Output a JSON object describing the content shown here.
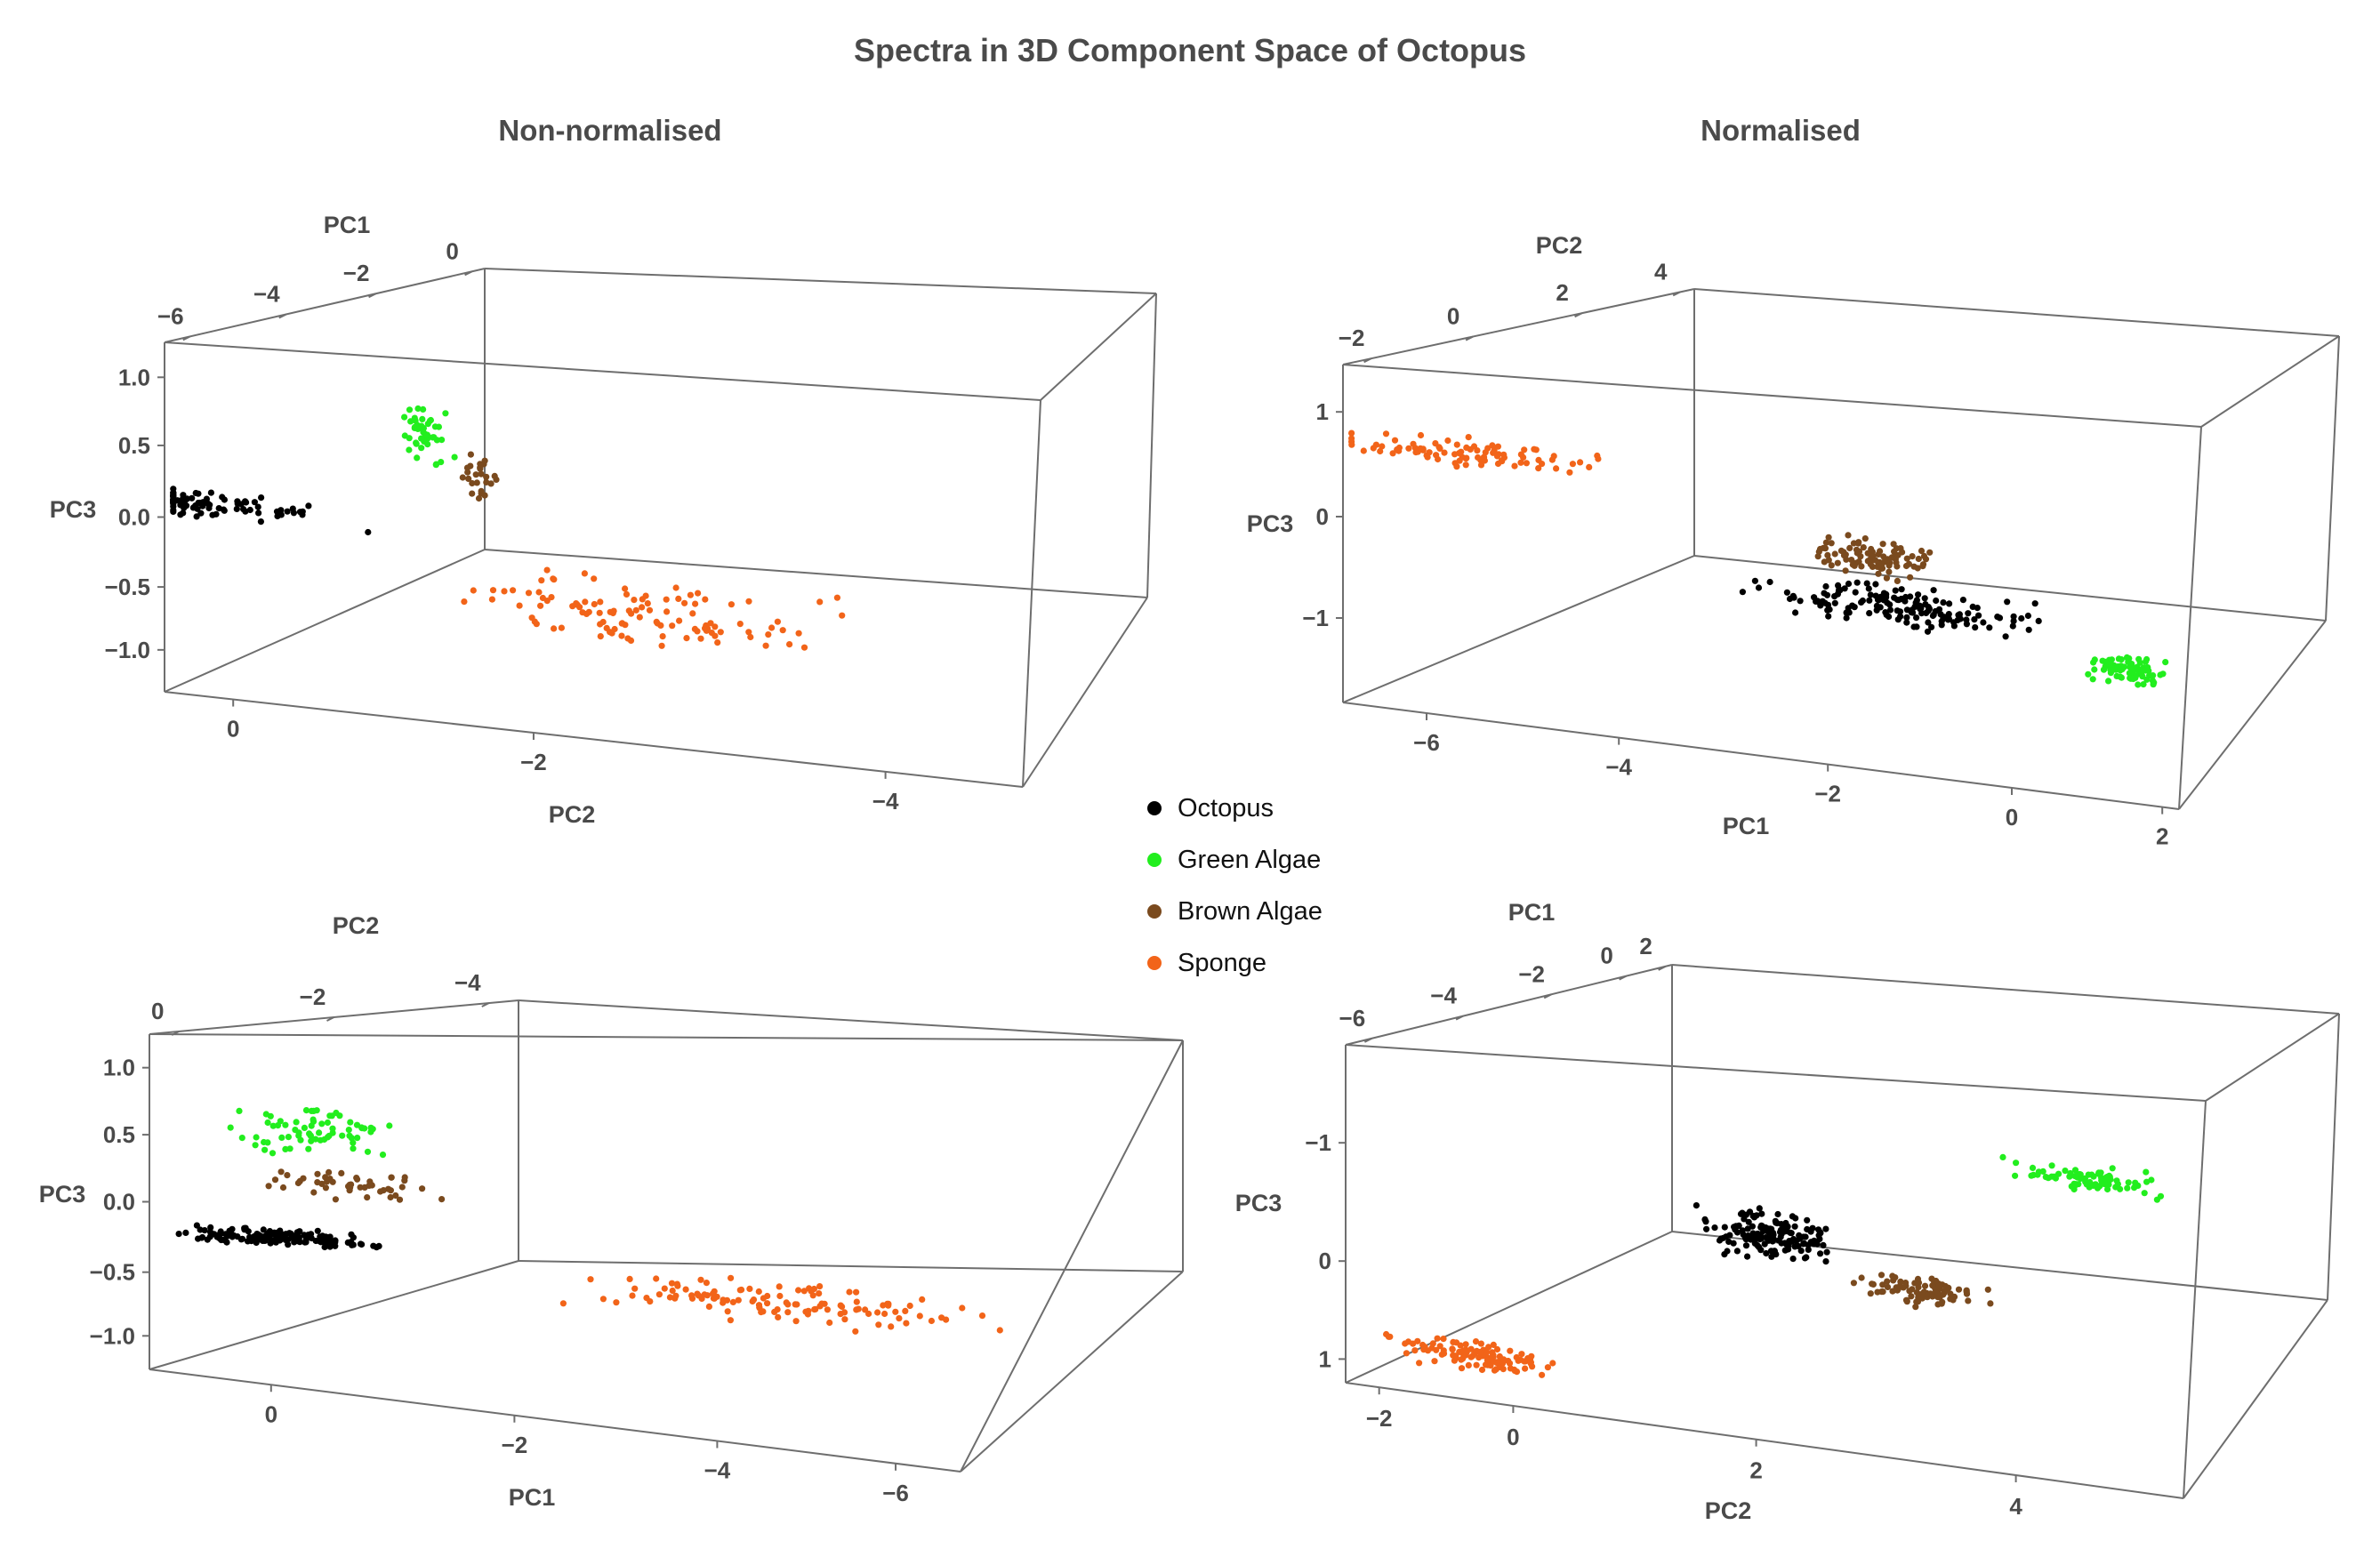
{
  "title": "Spectra in 3D Component Space of Octopus",
  "column_titles": [
    "Non-normalised",
    "Normalised"
  ],
  "legend": [
    {
      "name": "Octopus",
      "color": "#000000"
    },
    {
      "name": "Green Algae",
      "color": "#22ee1e"
    },
    {
      "name": "Brown Algae",
      "color": "#7a4a1e"
    },
    {
      "name": "Sponge",
      "color": "#f26419"
    }
  ],
  "chart_data": [
    {
      "type": "scatter",
      "panel": "top-left",
      "group": "Non-normalised",
      "labels": {
        "a": "PC1",
        "b": "PC2",
        "c": "PC3"
      },
      "ticks": {
        "a": [
          "−6",
          "−4",
          "−2",
          "0"
        ],
        "b": [
          "0",
          "−2",
          "−4"
        ],
        "c": [
          "1.0",
          "0.5",
          "0.0",
          "−0.5",
          "−1.0"
        ]
      },
      "clusters": [
        {
          "series": "Octopus",
          "n": 95,
          "anchor": [
            0.05,
            0.45
          ],
          "spread": [
            0.2,
            0.05
          ]
        },
        {
          "series": "Green Algae",
          "n": 45,
          "anchor": [
            0.3,
            0.2
          ],
          "spread": [
            0.04,
            0.12
          ]
        },
        {
          "series": "Brown Algae",
          "n": 25,
          "anchor": [
            0.36,
            0.31
          ],
          "spread": [
            0.03,
            0.08
          ]
        },
        {
          "series": "Sponge",
          "n": 110,
          "anchor": [
            0.55,
            0.65
          ],
          "spread": [
            0.3,
            0.12
          ]
        }
      ]
    },
    {
      "type": "scatter",
      "panel": "top-right",
      "group": "Normalised",
      "labels": {
        "a": "PC2",
        "b": "PC1",
        "c": "PC3"
      },
      "ticks": {
        "a": [
          "−2",
          "0",
          "2",
          "4"
        ],
        "b": [
          "−6",
          "−4",
          "−2",
          "0",
          "2"
        ],
        "c": [
          "1",
          "0",
          "−1"
        ]
      },
      "clusters": [
        {
          "series": "Sponge",
          "n": 90,
          "anchor": [
            0.15,
            0.23
          ],
          "spread": [
            0.2,
            0.06
          ]
        },
        {
          "series": "Brown Algae",
          "n": 95,
          "anchor": [
            0.62,
            0.42
          ],
          "spread": [
            0.1,
            0.07
          ]
        },
        {
          "series": "Octopus",
          "n": 160,
          "anchor": [
            0.66,
            0.55
          ],
          "spread": [
            0.22,
            0.08
          ]
        },
        {
          "series": "Green Algae",
          "n": 75,
          "anchor": [
            0.93,
            0.65
          ],
          "spread": [
            0.07,
            0.06
          ]
        }
      ]
    },
    {
      "type": "scatter",
      "panel": "bottom-left",
      "group": "Non-normalised",
      "labels": {
        "a": "PC2",
        "b": "PC1",
        "c": "PC3"
      },
      "ticks": {
        "a": [
          "0",
          "−2",
          "−4"
        ],
        "b": [
          "0",
          "−2",
          "−4",
          "−6"
        ],
        "c": [
          "1.0",
          "0.5",
          "0.0",
          "−0.5",
          "−1.0"
        ]
      },
      "clusters": [
        {
          "series": "Green Algae",
          "n": 70,
          "anchor": [
            0.17,
            0.28
          ],
          "spread": [
            0.1,
            0.1
          ]
        },
        {
          "series": "Brown Algae",
          "n": 50,
          "anchor": [
            0.22,
            0.42
          ],
          "spread": [
            0.14,
            0.05
          ]
        },
        {
          "series": "Octopus",
          "n": 150,
          "anchor": [
            0.15,
            0.58
          ],
          "spread": [
            0.14,
            0.03
          ]
        },
        {
          "series": "Sponge",
          "n": 120,
          "anchor": [
            0.7,
            0.65
          ],
          "spread": [
            0.3,
            0.07
          ]
        }
      ]
    },
    {
      "type": "scatter",
      "panel": "bottom-right",
      "group": "Normalised",
      "labels": {
        "a": "PC1",
        "b": "PC2",
        "c": "PC3"
      },
      "ticks": {
        "a": [
          "−6",
          "−4",
          "−2",
          "0",
          "2"
        ],
        "b": [
          "−2",
          "0",
          "2",
          "4"
        ],
        "c": [
          "−1",
          "0",
          "1"
        ]
      },
      "clusters": [
        {
          "series": "Green Algae",
          "n": 80,
          "anchor": [
            0.87,
            0.22
          ],
          "spread": [
            0.12,
            0.05
          ]
        },
        {
          "series": "Octopus",
          "n": 160,
          "anchor": [
            0.5,
            0.44
          ],
          "spread": [
            0.1,
            0.08
          ]
        },
        {
          "series": "Brown Algae",
          "n": 90,
          "anchor": [
            0.68,
            0.55
          ],
          "spread": [
            0.1,
            0.05
          ]
        },
        {
          "series": "Sponge",
          "n": 120,
          "anchor": [
            0.16,
            0.87
          ],
          "spread": [
            0.14,
            0.05
          ]
        }
      ]
    }
  ]
}
